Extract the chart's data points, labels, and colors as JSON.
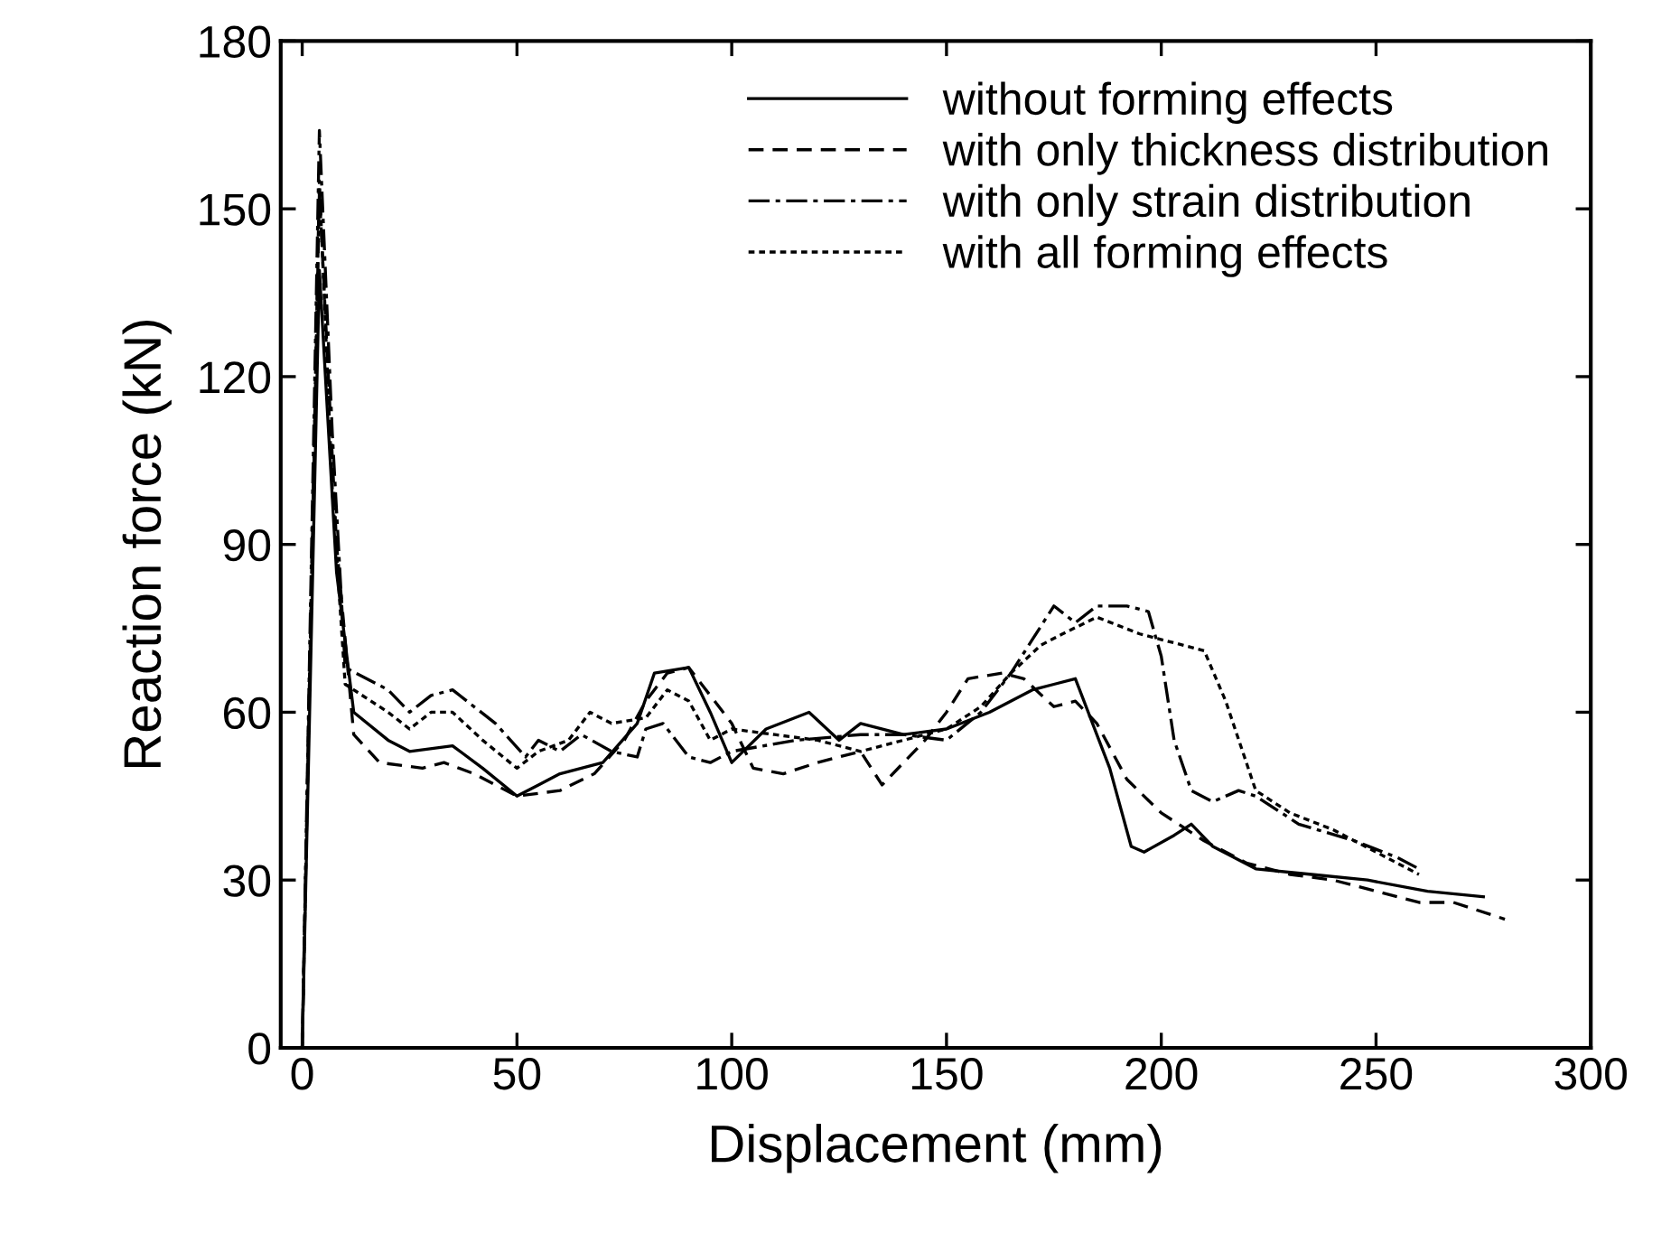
{
  "chart_data": {
    "type": "line",
    "xlabel": "Displacement (mm)",
    "ylabel": "Reaction force (kN)",
    "xlim": [
      -5,
      300
    ],
    "ylim": [
      0,
      180
    ],
    "xticks": [
      0,
      50,
      100,
      150,
      200,
      250,
      300
    ],
    "yticks": [
      0,
      30,
      60,
      90,
      120,
      150,
      180
    ],
    "grid": false,
    "legend": "top right",
    "marker": "none",
    "series": [
      {
        "name": "without forming effects",
        "color": "#000000",
        "line_style": "solid",
        "x": [
          0,
          4,
          8,
          12,
          20,
          25,
          35,
          42,
          50,
          55,
          60,
          70,
          78,
          82,
          90,
          95,
          100,
          108,
          118,
          125,
          130,
          140,
          150,
          160,
          170,
          175,
          180,
          188,
          193,
          196,
          203,
          207,
          212,
          222,
          235,
          248,
          262,
          275
        ],
        "values": [
          0,
          139,
          85,
          60,
          55,
          53,
          54,
          50,
          45,
          47,
          49,
          51,
          58,
          67,
          68,
          60,
          51,
          57,
          60,
          55,
          58,
          56,
          57,
          60,
          64,
          65,
          66,
          50,
          36,
          35,
          38,
          40,
          36,
          32,
          31,
          30,
          28,
          27
        ]
      },
      {
        "name": "with only thickness distribution",
        "color": "#000000",
        "line_style": "dashed",
        "x": [
          0,
          4,
          8,
          12,
          18,
          28,
          33,
          40,
          50,
          60,
          68,
          75,
          80,
          85,
          90,
          100,
          105,
          112,
          120,
          130,
          135,
          145,
          150,
          155,
          163,
          168,
          175,
          180,
          185,
          192,
          200,
          210,
          220,
          230,
          240,
          250,
          260,
          268,
          280
        ],
        "values": [
          0,
          153,
          90,
          56,
          51,
          50,
          51,
          49,
          45,
          46,
          49,
          55,
          62,
          67,
          68,
          58,
          50,
          49,
          51,
          53,
          47,
          55,
          60,
          66,
          67,
          66,
          61,
          62,
          58,
          48,
          42,
          37,
          33,
          31,
          30,
          28,
          26,
          26,
          23
        ]
      },
      {
        "name": "with only strain distribution",
        "color": "#000000",
        "line_style": "dashdot",
        "x": [
          0,
          4,
          7,
          10,
          20,
          25,
          30,
          35,
          45,
          52,
          55,
          60,
          65,
          72,
          78,
          80,
          84,
          90,
          95,
          100,
          115,
          130,
          140,
          150,
          158,
          165,
          170,
          175,
          180,
          185,
          192,
          197,
          200,
          203,
          207,
          212,
          218,
          222,
          232,
          245,
          255,
          260
        ],
        "values": [
          0,
          164,
          110,
          68,
          64,
          60,
          63,
          64,
          58,
          52,
          55,
          53,
          56,
          53,
          52,
          57,
          58,
          52,
          51,
          53,
          55,
          56,
          56,
          55,
          60,
          67,
          73,
          79,
          76,
          79,
          79,
          78,
          70,
          55,
          46,
          44,
          46,
          45,
          40,
          37,
          34,
          32
        ]
      },
      {
        "name": "with all forming effects",
        "color": "#000000",
        "line_style": "dotted",
        "x": [
          0,
          4,
          7,
          10,
          20,
          25,
          30,
          35,
          42,
          50,
          55,
          62,
          67,
          72,
          80,
          85,
          90,
          95,
          100,
          110,
          120,
          130,
          140,
          150,
          158,
          165,
          172,
          177,
          185,
          195,
          205,
          210,
          215,
          222,
          230,
          240,
          245,
          255,
          260
        ],
        "values": [
          0,
          155,
          100,
          65,
          60,
          57,
          60,
          60,
          55,
          50,
          53,
          55,
          60,
          58,
          59,
          64,
          62,
          55,
          57,
          56,
          55,
          53,
          55,
          57,
          61,
          67,
          72,
          74,
          77,
          74,
          72,
          71,
          62,
          46,
          42,
          39,
          37,
          33,
          31
        ]
      }
    ]
  }
}
